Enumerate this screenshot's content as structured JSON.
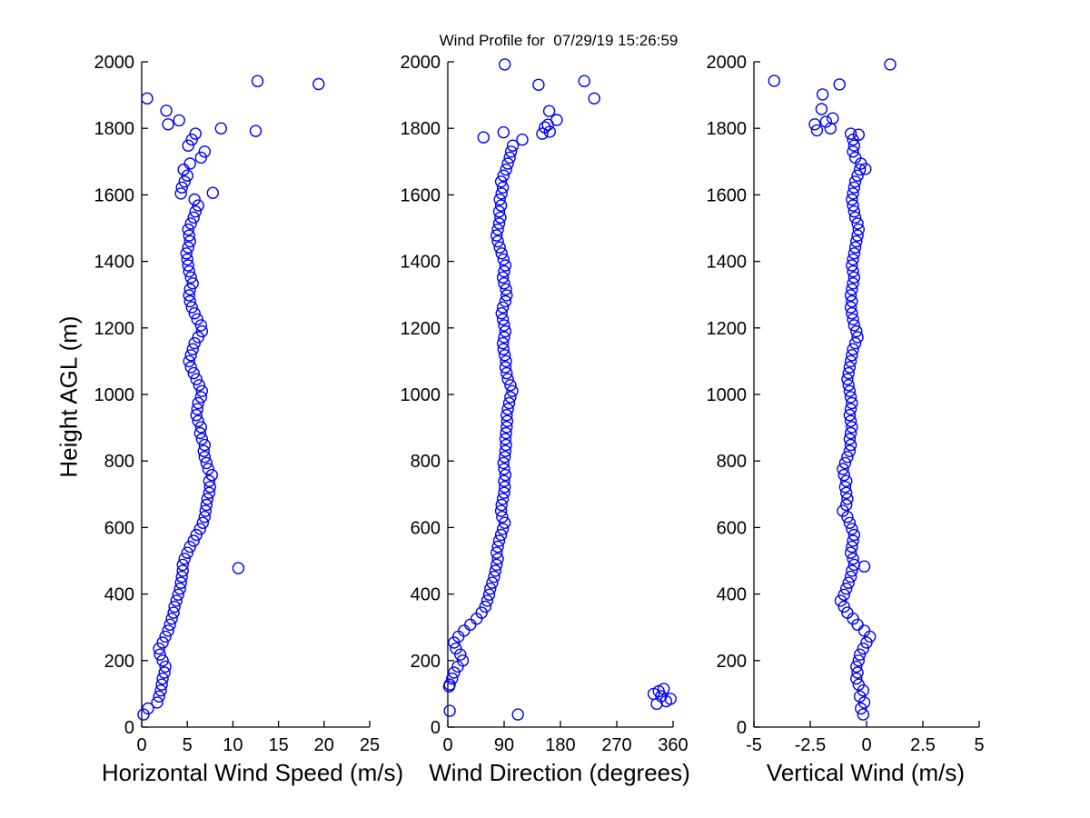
{
  "title": "Wind Profile for  07/29/19 15:26:59",
  "ylabel": "Height AGL (m)",
  "colors": {
    "marker": "#0000ff",
    "axis": "#000000",
    "background": "#ffffff"
  },
  "chart_data": [
    {
      "type": "scatter",
      "xlabel": "Horizontal Wind Speed (m/s)",
      "ylabel": "Height AGL (m)",
      "xlim": [
        0,
        25
      ],
      "ylim": [
        0,
        2000
      ],
      "xticks": [
        0,
        5,
        10,
        15,
        20,
        25
      ],
      "yticks": [
        0,
        200,
        400,
        600,
        800,
        1000,
        1200,
        1400,
        1600,
        1800,
        2000
      ],
      "grid": false,
      "points": [
        [
          0.2,
          38
        ],
        [
          0.7,
          56
        ],
        [
          1.7,
          74
        ],
        [
          1.9,
          92
        ],
        [
          2.1,
          110
        ],
        [
          2.2,
          128
        ],
        [
          2.3,
          146
        ],
        [
          2.5,
          164
        ],
        [
          2.6,
          182
        ],
        [
          2.3,
          200
        ],
        [
          2.0,
          218
        ],
        [
          1.9,
          236
        ],
        [
          2.3,
          254
        ],
        [
          2.6,
          272
        ],
        [
          2.9,
          290
        ],
        [
          3.1,
          308
        ],
        [
          3.3,
          326
        ],
        [
          3.5,
          344
        ],
        [
          3.6,
          362
        ],
        [
          3.8,
          380
        ],
        [
          4.0,
          398
        ],
        [
          4.2,
          416
        ],
        [
          4.3,
          434
        ],
        [
          4.4,
          452
        ],
        [
          4.5,
          470
        ],
        [
          4.5,
          488
        ],
        [
          4.7,
          506
        ],
        [
          5.0,
          524
        ],
        [
          5.3,
          542
        ],
        [
          5.7,
          560
        ],
        [
          6.0,
          578
        ],
        [
          6.4,
          596
        ],
        [
          6.7,
          614
        ],
        [
          6.9,
          632
        ],
        [
          7.0,
          650
        ],
        [
          7.1,
          668
        ],
        [
          7.2,
          686
        ],
        [
          7.4,
          704
        ],
        [
          7.5,
          722
        ],
        [
          7.4,
          740
        ],
        [
          7.7,
          758
        ],
        [
          7.3,
          776
        ],
        [
          7.1,
          794
        ],
        [
          6.9,
          812
        ],
        [
          6.8,
          830
        ],
        [
          6.9,
          848
        ],
        [
          6.6,
          866
        ],
        [
          6.4,
          884
        ],
        [
          6.5,
          902
        ],
        [
          6.2,
          920
        ],
        [
          6.0,
          938
        ],
        [
          6.1,
          956
        ],
        [
          6.2,
          974
        ],
        [
          6.5,
          992
        ],
        [
          6.6,
          1010
        ],
        [
          6.3,
          1028
        ],
        [
          6.0,
          1046
        ],
        [
          5.7,
          1064
        ],
        [
          5.4,
          1082
        ],
        [
          5.2,
          1100
        ],
        [
          5.4,
          1118
        ],
        [
          5.6,
          1136
        ],
        [
          5.8,
          1154
        ],
        [
          6.2,
          1172
        ],
        [
          6.6,
          1190
        ],
        [
          6.5,
          1208
        ],
        [
          6.1,
          1226
        ],
        [
          5.8,
          1244
        ],
        [
          5.5,
          1262
        ],
        [
          5.3,
          1280
        ],
        [
          5.2,
          1298
        ],
        [
          5.3,
          1316
        ],
        [
          5.6,
          1334
        ],
        [
          5.4,
          1352
        ],
        [
          5.2,
          1370
        ],
        [
          5.1,
          1388
        ],
        [
          5.0,
          1406
        ],
        [
          4.9,
          1424
        ],
        [
          5.1,
          1442
        ],
        [
          5.3,
          1460
        ],
        [
          5.2,
          1478
        ],
        [
          5.1,
          1496
        ],
        [
          5.4,
          1514
        ],
        [
          5.7,
          1532
        ],
        [
          5.9,
          1550
        ],
        [
          6.2,
          1568
        ],
        [
          5.8,
          1586
        ],
        [
          4.3,
          1604
        ],
        [
          4.4,
          1622
        ],
        [
          4.7,
          1640
        ],
        [
          5.0,
          1658
        ],
        [
          4.6,
          1676
        ],
        [
          5.3,
          1694
        ],
        [
          6.5,
          1712
        ],
        [
          6.9,
          1730
        ],
        [
          5.1,
          1748
        ],
        [
          5.5,
          1766
        ],
        [
          5.9,
          1784
        ],
        [
          10.6,
          478
        ],
        [
          7.8,
          1606
        ],
        [
          8.7,
          1800
        ],
        [
          12.5,
          1792
        ],
        [
          2.9,
          1812
        ],
        [
          4.1,
          1824
        ],
        [
          2.7,
          1853
        ],
        [
          0.6,
          1890
        ],
        [
          12.7,
          1942
        ],
        [
          19.4,
          1933
        ]
      ]
    },
    {
      "type": "scatter",
      "xlabel": "Wind Direction (degrees)",
      "xlim": [
        0,
        360
      ],
      "ylim": [
        0,
        2000
      ],
      "xticks": [
        0,
        90,
        180,
        270,
        360
      ],
      "yticks": [
        0,
        200,
        400,
        600,
        800,
        1000,
        1200,
        1400,
        1600,
        1800,
        2000
      ],
      "grid": false,
      "points": [
        [
          112,
          38
        ],
        [
          3,
          49
        ],
        [
          334,
          70
        ],
        [
          349,
          78
        ],
        [
          356,
          85
        ],
        [
          341,
          93
        ],
        [
          329,
          100
        ],
        [
          337,
          108
        ],
        [
          345,
          115
        ],
        [
          2,
          122
        ],
        [
          3,
          128
        ],
        [
          7,
          146
        ],
        [
          10,
          164
        ],
        [
          16,
          182
        ],
        [
          24,
          200
        ],
        [
          20,
          218
        ],
        [
          13,
          236
        ],
        [
          10,
          254
        ],
        [
          17,
          272
        ],
        [
          26,
          290
        ],
        [
          36,
          308
        ],
        [
          46,
          326
        ],
        [
          54,
          344
        ],
        [
          60,
          362
        ],
        [
          63,
          380
        ],
        [
          66,
          398
        ],
        [
          68,
          416
        ],
        [
          71,
          434
        ],
        [
          74,
          452
        ],
        [
          76,
          470
        ],
        [
          78,
          488
        ],
        [
          80,
          506
        ],
        [
          78,
          524
        ],
        [
          80,
          542
        ],
        [
          82,
          560
        ],
        [
          85,
          578
        ],
        [
          88,
          596
        ],
        [
          91,
          614
        ],
        [
          87,
          632
        ],
        [
          85,
          650
        ],
        [
          86,
          668
        ],
        [
          88,
          686
        ],
        [
          90,
          704
        ],
        [
          91,
          722
        ],
        [
          90,
          740
        ],
        [
          92,
          758
        ],
        [
          90,
          776
        ],
        [
          89,
          794
        ],
        [
          91,
          812
        ],
        [
          92,
          830
        ],
        [
          93,
          848
        ],
        [
          92,
          866
        ],
        [
          93,
          884
        ],
        [
          94,
          902
        ],
        [
          95,
          920
        ],
        [
          94,
          938
        ],
        [
          96,
          956
        ],
        [
          98,
          974
        ],
        [
          100,
          992
        ],
        [
          103,
          1010
        ],
        [
          100,
          1028
        ],
        [
          96,
          1046
        ],
        [
          94,
          1064
        ],
        [
          92,
          1082
        ],
        [
          93,
          1100
        ],
        [
          91,
          1118
        ],
        [
          89,
          1136
        ],
        [
          88,
          1154
        ],
        [
          90,
          1172
        ],
        [
          92,
          1190
        ],
        [
          90,
          1208
        ],
        [
          88,
          1226
        ],
        [
          86,
          1244
        ],
        [
          88,
          1262
        ],
        [
          92,
          1280
        ],
        [
          94,
          1298
        ],
        [
          93,
          1316
        ],
        [
          90,
          1334
        ],
        [
          88,
          1352
        ],
        [
          90,
          1370
        ],
        [
          92,
          1388
        ],
        [
          89,
          1406
        ],
        [
          86,
          1424
        ],
        [
          83,
          1442
        ],
        [
          80,
          1460
        ],
        [
          78,
          1478
        ],
        [
          80,
          1496
        ],
        [
          82,
          1514
        ],
        [
          84,
          1532
        ],
        [
          82,
          1550
        ],
        [
          85,
          1568
        ],
        [
          83,
          1586
        ],
        [
          86,
          1604
        ],
        [
          88,
          1622
        ],
        [
          85,
          1640
        ],
        [
          89,
          1658
        ],
        [
          93,
          1676
        ],
        [
          96,
          1694
        ],
        [
          99,
          1712
        ],
        [
          101,
          1730
        ],
        [
          104,
          1748
        ],
        [
          119,
          1766
        ],
        [
          57,
          1773
        ],
        [
          89,
          1788
        ],
        [
          151,
          1784
        ],
        [
          163,
          1790
        ],
        [
          155,
          1803
        ],
        [
          160,
          1811
        ],
        [
          174,
          1825
        ],
        [
          162,
          1852
        ],
        [
          234,
          1890
        ],
        [
          145,
          1931
        ],
        [
          218,
          1942
        ],
        [
          91,
          1992
        ]
      ]
    },
    {
      "type": "scatter",
      "xlabel": "Vertical Wind (m/s)",
      "xlim": [
        -5,
        5
      ],
      "ylim": [
        0,
        2000
      ],
      "xticks": [
        -5,
        -2.5,
        0,
        2.5,
        5
      ],
      "yticks": [
        0,
        200,
        400,
        600,
        800,
        1000,
        1200,
        1400,
        1600,
        1800,
        2000
      ],
      "grid": false,
      "points": [
        [
          -0.15,
          38
        ],
        [
          -0.25,
          56
        ],
        [
          -0.1,
          74
        ],
        [
          -0.3,
          92
        ],
        [
          -0.15,
          110
        ],
        [
          -0.35,
          128
        ],
        [
          -0.45,
          146
        ],
        [
          -0.4,
          164
        ],
        [
          -0.45,
          182
        ],
        [
          -0.35,
          200
        ],
        [
          -0.3,
          218
        ],
        [
          -0.15,
          236
        ],
        [
          0,
          254
        ],
        [
          0.15,
          272
        ],
        [
          -0.1,
          290
        ],
        [
          -0.4,
          308
        ],
        [
          -0.6,
          326
        ],
        [
          -0.85,
          344
        ],
        [
          -1.0,
          362
        ],
        [
          -1.15,
          380
        ],
        [
          -1.0,
          398
        ],
        [
          -0.9,
          416
        ],
        [
          -0.8,
          434
        ],
        [
          -0.7,
          452
        ],
        [
          -0.65,
          470
        ],
        [
          -0.55,
          488
        ],
        [
          -0.6,
          506
        ],
        [
          -0.7,
          524
        ],
        [
          -0.65,
          542
        ],
        [
          -0.6,
          560
        ],
        [
          -0.55,
          578
        ],
        [
          -0.65,
          596
        ],
        [
          -0.75,
          614
        ],
        [
          -0.85,
          632
        ],
        [
          -1.05,
          650
        ],
        [
          -0.9,
          668
        ],
        [
          -0.85,
          686
        ],
        [
          -0.9,
          704
        ],
        [
          -0.95,
          722
        ],
        [
          -0.9,
          740
        ],
        [
          -1.0,
          758
        ],
        [
          -1.05,
          776
        ],
        [
          -0.95,
          794
        ],
        [
          -0.85,
          812
        ],
        [
          -0.75,
          830
        ],
        [
          -0.7,
          848
        ],
        [
          -0.75,
          866
        ],
        [
          -0.7,
          884
        ],
        [
          -0.65,
          902
        ],
        [
          -0.7,
          920
        ],
        [
          -0.75,
          938
        ],
        [
          -0.7,
          956
        ],
        [
          -0.65,
          974
        ],
        [
          -0.7,
          992
        ],
        [
          -0.75,
          1010
        ],
        [
          -0.8,
          1028
        ],
        [
          -0.85,
          1046
        ],
        [
          -0.8,
          1064
        ],
        [
          -0.75,
          1082
        ],
        [
          -0.7,
          1100
        ],
        [
          -0.65,
          1118
        ],
        [
          -0.6,
          1136
        ],
        [
          -0.5,
          1154
        ],
        [
          -0.4,
          1172
        ],
        [
          -0.45,
          1190
        ],
        [
          -0.55,
          1208
        ],
        [
          -0.6,
          1226
        ],
        [
          -0.65,
          1244
        ],
        [
          -0.7,
          1262
        ],
        [
          -0.65,
          1280
        ],
        [
          -0.7,
          1298
        ],
        [
          -0.65,
          1316
        ],
        [
          -0.6,
          1334
        ],
        [
          -0.55,
          1352
        ],
        [
          -0.6,
          1370
        ],
        [
          -0.65,
          1388
        ],
        [
          -0.6,
          1406
        ],
        [
          -0.55,
          1424
        ],
        [
          -0.5,
          1442
        ],
        [
          -0.45,
          1460
        ],
        [
          -0.4,
          1478
        ],
        [
          -0.35,
          1496
        ],
        [
          -0.4,
          1514
        ],
        [
          -0.5,
          1532
        ],
        [
          -0.55,
          1550
        ],
        [
          -0.6,
          1568
        ],
        [
          -0.65,
          1586
        ],
        [
          -0.6,
          1604
        ],
        [
          -0.55,
          1622
        ],
        [
          -0.5,
          1640
        ],
        [
          -0.4,
          1658
        ],
        [
          -0.3,
          1676
        ],
        [
          -0.25,
          1694
        ],
        [
          -0.5,
          1712
        ],
        [
          -0.6,
          1730
        ],
        [
          -0.55,
          1748
        ],
        [
          -0.6,
          1766
        ],
        [
          -0.7,
          1784
        ],
        [
          -0.1,
          483
        ],
        [
          -0.05,
          1678
        ],
        [
          -0.35,
          1781
        ],
        [
          -2.2,
          1794
        ],
        [
          -1.6,
          1800
        ],
        [
          -2.3,
          1812
        ],
        [
          -1.8,
          1820
        ],
        [
          -1.5,
          1830
        ],
        [
          -2.0,
          1858
        ],
        [
          -1.95,
          1902
        ],
        [
          -1.2,
          1932
        ],
        [
          -4.1,
          1943
        ],
        [
          1.05,
          1992
        ]
      ]
    }
  ]
}
